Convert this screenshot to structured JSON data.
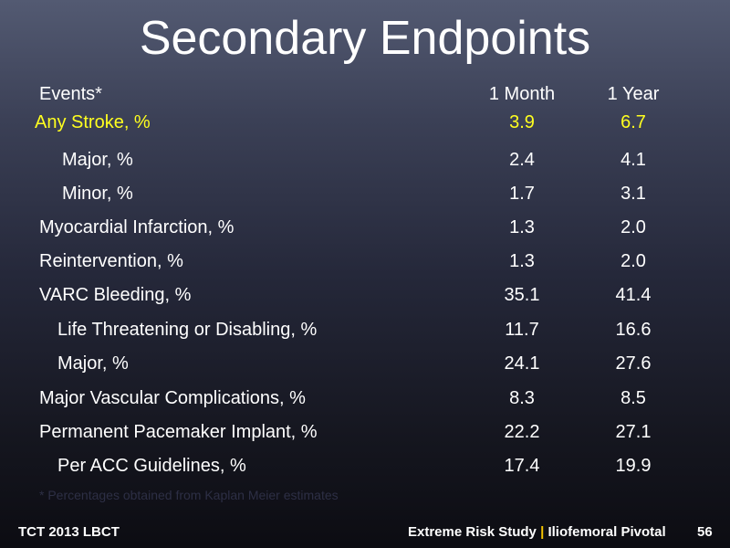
{
  "slide": {
    "title": "Secondary Endpoints",
    "columns": {
      "events": "Events*",
      "col1": "1 Month",
      "col2": "1 Year"
    },
    "rows": [
      {
        "label": "Any Stroke, %",
        "month": "3.9",
        "year": "6.7"
      },
      {
        "label": "Major, %",
        "month": "2.4",
        "year": "4.1"
      },
      {
        "label": "Minor, %",
        "month": "1.7",
        "year": "3.1"
      },
      {
        "label": "Myocardial Infarction, %",
        "month": "1.3",
        "year": "2.0"
      },
      {
        "label": "Reintervention, %",
        "month": "1.3",
        "year": "2.0"
      },
      {
        "label": "VARC Bleeding, %",
        "month": "35.1",
        "year": "41.4"
      },
      {
        "label": "Life Threatening or Disabling, %",
        "month": "11.7",
        "year": "16.6"
      },
      {
        "label": "Major, %",
        "month": "24.1",
        "year": "27.6"
      },
      {
        "label": "Major Vascular Complications, %",
        "month": "8.3",
        "year": "8.5"
      },
      {
        "label": "Permanent Pacemaker Implant, %",
        "month": "22.2",
        "year": "27.1"
      },
      {
        "label": "Per ACC Guidelines, %",
        "month": "17.4",
        "year": "19.9"
      }
    ],
    "footnote": "* Percentages obtained from Kaplan Meier estimates"
  },
  "footer": {
    "left": "TCT 2013 LBCT",
    "right_part1": "Extreme Risk Study",
    "separator": "|",
    "right_part2": "Iliofemoral Pivotal",
    "page_number": "56"
  },
  "colors": {
    "highlight": "#ffff1f",
    "separator": "#f5c400",
    "text": "#ffffff"
  }
}
